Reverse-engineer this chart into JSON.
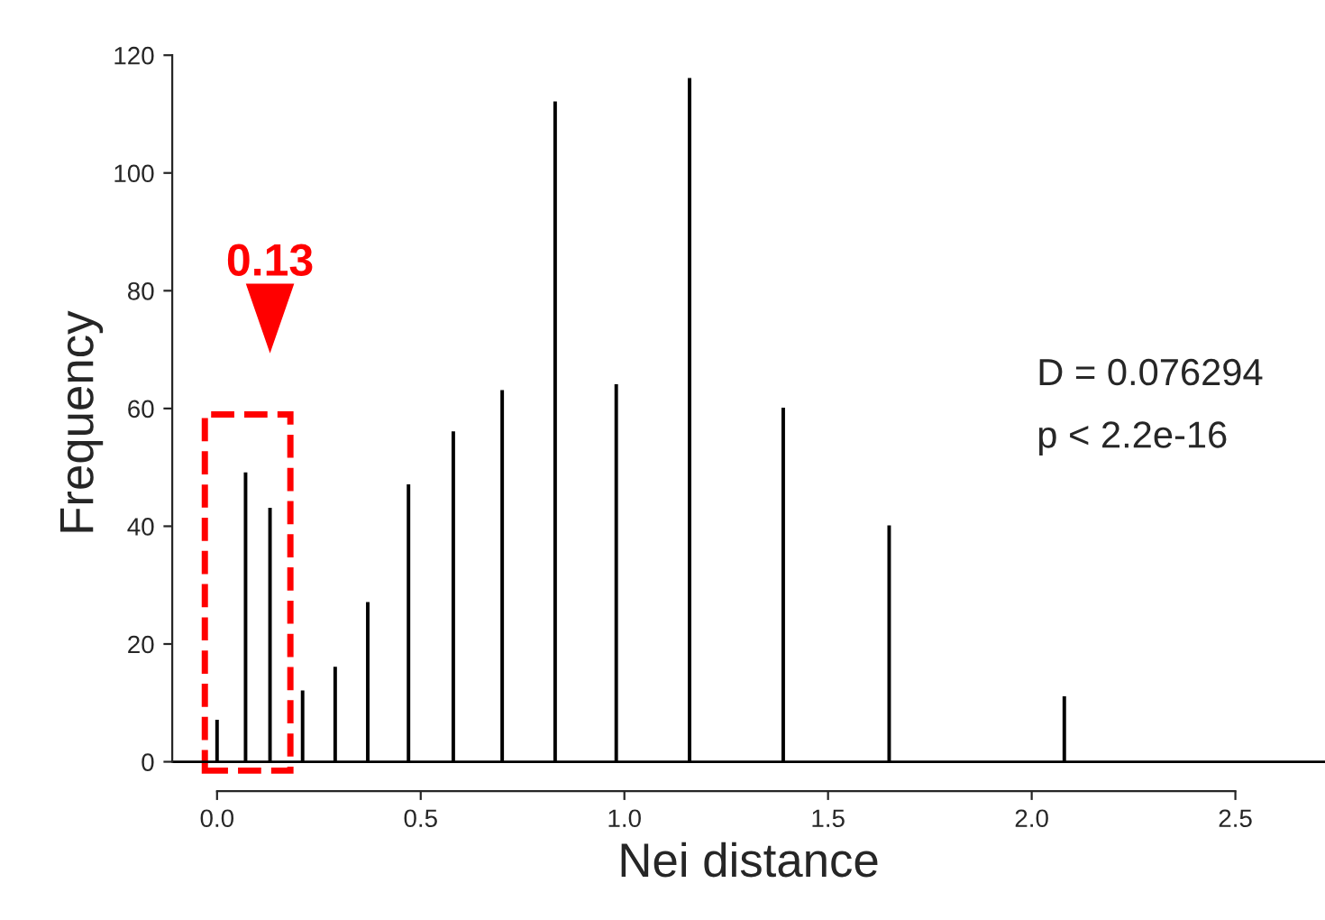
{
  "chart_data": {
    "type": "bar",
    "xlabel": "Nei distance",
    "ylabel": "Frequency",
    "x": [
      0,
      0.07,
      0.13,
      0.21,
      0.29,
      0.37,
      0.47,
      0.58,
      0.7,
      0.83,
      0.98,
      1.16,
      1.39,
      1.65,
      2.08
    ],
    "values": [
      7,
      49,
      43,
      12,
      16,
      27,
      47,
      56,
      63,
      112,
      64,
      116,
      60,
      40,
      11
    ],
    "color": "#000000",
    "xlim": [
      -0.11,
      2.72
    ],
    "ylim": [
      -5,
      120
    ],
    "xticks": [
      {
        "value": 0,
        "label": "0.0"
      },
      0.5,
      {
        "value": 1,
        "label": "1.0"
      },
      1.5,
      {
        "value": 2,
        "label": "2.0"
      },
      2.5
    ],
    "yticks": [
      0,
      20,
      40,
      60,
      80,
      100,
      120
    ],
    "ref_lines": [
      {
        "axis": "y",
        "value": 0,
        "color": "#000000"
      }
    ],
    "annotations": [
      {
        "text": "0.13",
        "x": 0.13,
        "y": 76
      },
      "D = 0.076294",
      "p < 2.2e-16"
    ],
    "grid": false,
    "legend": false
  }
}
